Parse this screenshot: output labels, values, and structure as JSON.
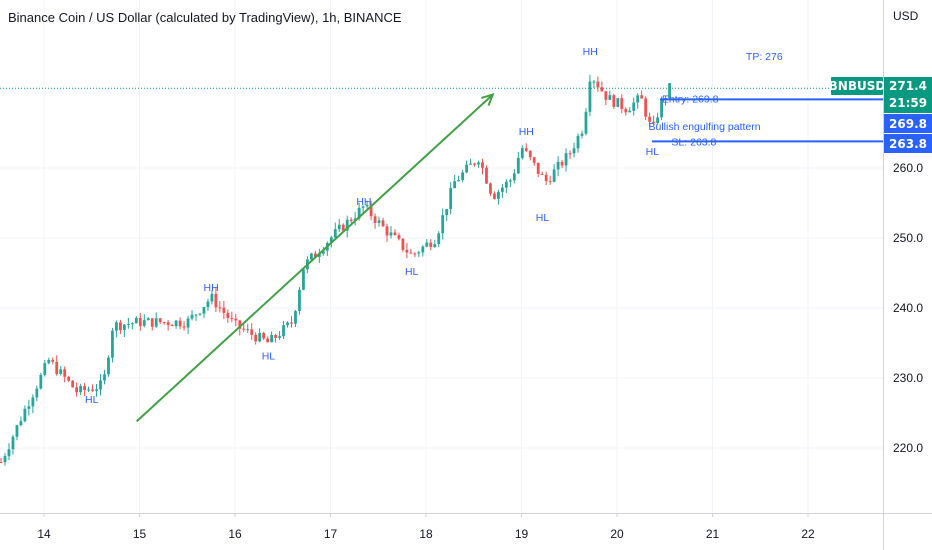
{
  "header": {
    "title": "Binance Coin / US Dollar (calculated by TradingView), 1h, BINANCE",
    "currency": "USD"
  },
  "chart_data": {
    "type": "candlestick",
    "x_ticks": [
      "14",
      "15",
      "16",
      "17",
      "18",
      "19",
      "20",
      "21",
      "22"
    ],
    "y_ticks": [
      "220.0",
      "230.0",
      "240.0",
      "250.0",
      "260.0"
    ],
    "ylim": [
      212,
      280
    ],
    "grid": true,
    "colors": {
      "up": "#26a69a",
      "down": "#ef5350",
      "trend": "#43a047",
      "annotation": "#2962ff",
      "symbol": "#089981",
      "level": "#2962ff"
    },
    "symbol_label": "BNBUSD",
    "last_price": "271.4",
    "countdown": "21:59",
    "entry_badge": "269.8",
    "sl_badge": "263.8",
    "annotations": {
      "tp": "TP: 276",
      "entry": "Entry: 269.8",
      "pattern": "Bullish engulfing pattern",
      "sl": "SL: 263.8"
    },
    "swing_labels": [
      {
        "text": "HL",
        "x": 14.5,
        "y": 227.0
      },
      {
        "text": "HH",
        "x": 15.75,
        "y": 243.0
      },
      {
        "text": "HL",
        "x": 16.35,
        "y": 233.2
      },
      {
        "text": "HH",
        "x": 17.35,
        "y": 255.3
      },
      {
        "text": "HL",
        "x": 17.85,
        "y": 245.3
      },
      {
        "text": "HH",
        "x": 19.05,
        "y": 265.3
      },
      {
        "text": "HL",
        "x": 19.22,
        "y": 253.0
      },
      {
        "text": "HH",
        "x": 19.72,
        "y": 276.7
      },
      {
        "text": "HL",
        "x": 20.37,
        "y": 262.4
      }
    ],
    "levels": {
      "tp": 276,
      "entry": 269.8,
      "sl": 263.8,
      "last": 271.4
    },
    "trend_arrow": {
      "from": [
        14.97,
        223.8
      ],
      "to": [
        18.7,
        270.5
      ]
    },
    "anchors": [
      {
        "x": 13.55,
        "close": 218.0
      },
      {
        "x": 13.8,
        "close": 225.5
      },
      {
        "x": 14.05,
        "close": 232.5
      },
      {
        "x": 14.35,
        "close": 228.0
      },
      {
        "x": 14.62,
        "close": 229.0
      },
      {
        "x": 14.72,
        "close": 237.5
      },
      {
        "x": 15.0,
        "close": 238.0
      },
      {
        "x": 15.5,
        "close": 238.0
      },
      {
        "x": 15.75,
        "close": 241.5
      },
      {
        "x": 16.0,
        "close": 237.5
      },
      {
        "x": 16.35,
        "close": 235.0
      },
      {
        "x": 16.6,
        "close": 238.0
      },
      {
        "x": 16.72,
        "close": 246.0
      },
      {
        "x": 17.0,
        "close": 250.0
      },
      {
        "x": 17.35,
        "close": 254.5
      },
      {
        "x": 17.55,
        "close": 251.5
      },
      {
        "x": 17.85,
        "close": 247.5
      },
      {
        "x": 18.1,
        "close": 250.0
      },
      {
        "x": 18.3,
        "close": 258.0
      },
      {
        "x": 18.55,
        "close": 261.5
      },
      {
        "x": 18.7,
        "close": 256.0
      },
      {
        "x": 18.9,
        "close": 258.5
      },
      {
        "x": 19.0,
        "close": 263.0
      },
      {
        "x": 19.25,
        "close": 258.0
      },
      {
        "x": 19.5,
        "close": 262.0
      },
      {
        "x": 19.65,
        "close": 266.0
      },
      {
        "x": 19.72,
        "close": 273.5
      },
      {
        "x": 19.9,
        "close": 270.0
      },
      {
        "x": 20.1,
        "close": 268.5
      },
      {
        "x": 20.25,
        "close": 270.0
      },
      {
        "x": 20.37,
        "close": 265.0
      },
      {
        "x": 20.45,
        "close": 269.0
      },
      {
        "x": 20.55,
        "close": 271.4
      }
    ]
  }
}
